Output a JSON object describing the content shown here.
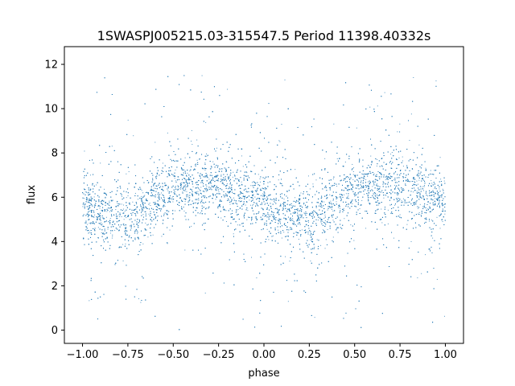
{
  "chart_data": {
    "type": "scatter",
    "title": "1SWASPJ005215.03-315547.5 Period 11398.40332s",
    "xlabel": "phase",
    "ylabel": "flux",
    "xlim": [
      -1.1,
      1.1
    ],
    "ylim": [
      -0.6,
      12.8
    ],
    "xticks": [
      -1.0,
      -0.75,
      -0.5,
      -0.25,
      0.0,
      0.25,
      0.5,
      0.75,
      1.0
    ],
    "xtick_labels": [
      "−1.00",
      "−0.75",
      "−0.50",
      "−0.25",
      "0.00",
      "0.25",
      "0.50",
      "0.75",
      "1.00"
    ],
    "yticks": [
      0,
      2,
      4,
      6,
      8,
      10,
      12
    ],
    "ytick_labels": [
      "0",
      "2",
      "4",
      "6",
      "8",
      "10",
      "12"
    ],
    "grid": false,
    "legend": "none",
    "point_color": "#1f77b4",
    "series": [
      {
        "phase_range": [
          -1.0,
          1.0
        ],
        "mean_curve": {
          "phase": [
            -1.0,
            -0.9,
            -0.8,
            -0.7,
            -0.6,
            -0.5,
            -0.4,
            -0.3,
            -0.2,
            -0.1,
            0.0,
            0.1,
            0.2,
            0.3,
            0.4,
            0.5,
            0.6,
            0.7,
            0.8,
            0.9,
            1.0
          ],
          "flux": [
            5.6,
            5.3,
            5.1,
            5.3,
            5.9,
            6.3,
            6.5,
            6.6,
            6.4,
            6.0,
            5.6,
            5.3,
            5.1,
            5.3,
            5.9,
            6.3,
            6.5,
            6.6,
            6.4,
            6.0,
            5.6
          ]
        },
        "flux_range": [
          0,
          12.2
        ]
      }
    ]
  }
}
